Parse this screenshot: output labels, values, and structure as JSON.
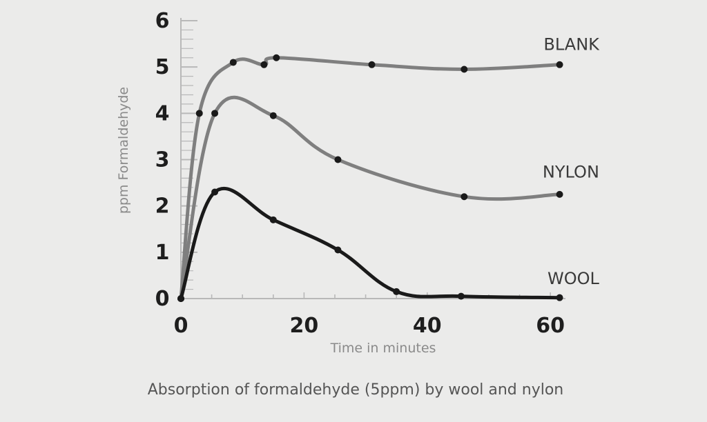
{
  "chart_data": {
    "type": "line",
    "title": "Absorption of formaldehyde (5ppm) by wool and nylon",
    "xlabel": "Time in minutes",
    "ylabel": "ppm Formaldehyde",
    "xlim": [
      0,
      62
    ],
    "ylim": [
      0,
      6
    ],
    "x_ticks": [
      0,
      20,
      40,
      60
    ],
    "y_ticks": [
      0,
      1,
      2,
      3,
      4,
      5,
      6
    ],
    "grid": false,
    "legend": "labels at right end of each line",
    "series": [
      {
        "name": "BLANK",
        "color": "#7f7f7f",
        "points": [
          [
            0,
            0
          ],
          [
            3,
            4.0
          ],
          [
            8.5,
            5.1
          ],
          [
            13.5,
            5.05
          ],
          [
            15.5,
            5.2
          ],
          [
            31,
            5.05
          ],
          [
            46,
            4.95
          ],
          [
            61.5,
            5.05
          ]
        ],
        "label_pos": [
          63,
          5.5
        ]
      },
      {
        "name": "NYLON",
        "color": "#7f7f7f",
        "points": [
          [
            0,
            0
          ],
          [
            5.5,
            4.0
          ],
          [
            15,
            3.95
          ],
          [
            25.5,
            3.0
          ],
          [
            46,
            2.2
          ],
          [
            61.5,
            2.25
          ]
        ],
        "label_pos": [
          63,
          2.75
        ]
      },
      {
        "name": "WOOL",
        "color": "#1a1a1a",
        "points": [
          [
            0,
            0
          ],
          [
            5.5,
            2.3
          ],
          [
            15,
            1.7
          ],
          [
            25.5,
            1.05
          ],
          [
            35,
            0.15
          ],
          [
            45.5,
            0.05
          ],
          [
            61.5,
            0.02
          ]
        ],
        "label_pos": [
          63,
          0.45
        ]
      }
    ]
  }
}
